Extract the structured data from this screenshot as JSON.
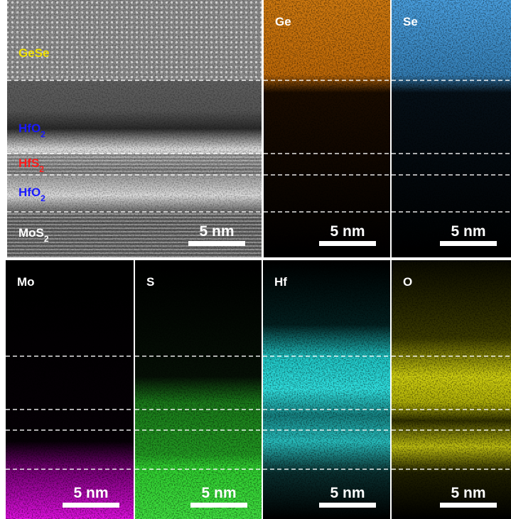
{
  "tem": {
    "layers": [
      {
        "name": "GeSe",
        "color": "#f0e000"
      },
      {
        "name": "HfO",
        "sub": "2",
        "color": "#1a1aff"
      },
      {
        "name": "HfS",
        "sub": "2",
        "color": "#ff1a1a"
      },
      {
        "name": "HfO",
        "sub": "2",
        "color": "#1a1aff"
      },
      {
        "name": "MoS",
        "sub": "2",
        "color": "#ffffff"
      }
    ],
    "scale_bar": "5 nm"
  },
  "maps": [
    {
      "label": "Ge",
      "scale_bar": "5 nm"
    },
    {
      "label": "Se",
      "scale_bar": "5 nm"
    },
    {
      "label": "Mo",
      "scale_bar": "5 nm"
    },
    {
      "label": "S",
      "scale_bar": "5 nm"
    },
    {
      "label": "Hf",
      "scale_bar": "5 nm"
    },
    {
      "label": "O",
      "scale_bar": "5 nm"
    }
  ]
}
